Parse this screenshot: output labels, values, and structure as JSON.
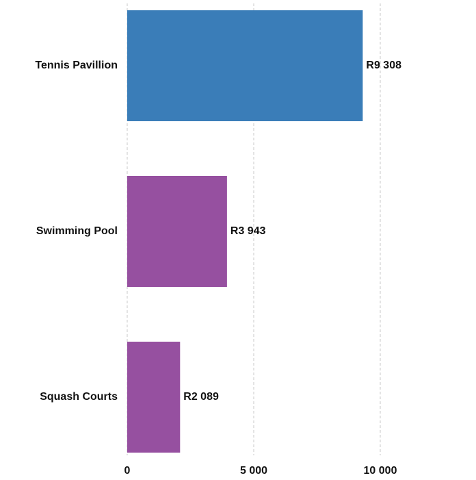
{
  "chart_data": {
    "type": "bar",
    "orientation": "horizontal",
    "categories": [
      "Tennis Pavillion",
      "Swimming Pool",
      "Squash Courts"
    ],
    "values": [
      9308,
      3943,
      2089
    ],
    "value_labels": [
      "R9 308",
      "R3 943",
      "R2 089"
    ],
    "colors": [
      "#3a7db8",
      "#9650a0",
      "#9650a0"
    ],
    "xlim": [
      0,
      12000
    ],
    "xticks": [
      0,
      {
        "value": 5000,
        "label": "5 000"
      },
      {
        "value": 10000,
        "label": "10 000"
      }
    ],
    "grid": true
  }
}
